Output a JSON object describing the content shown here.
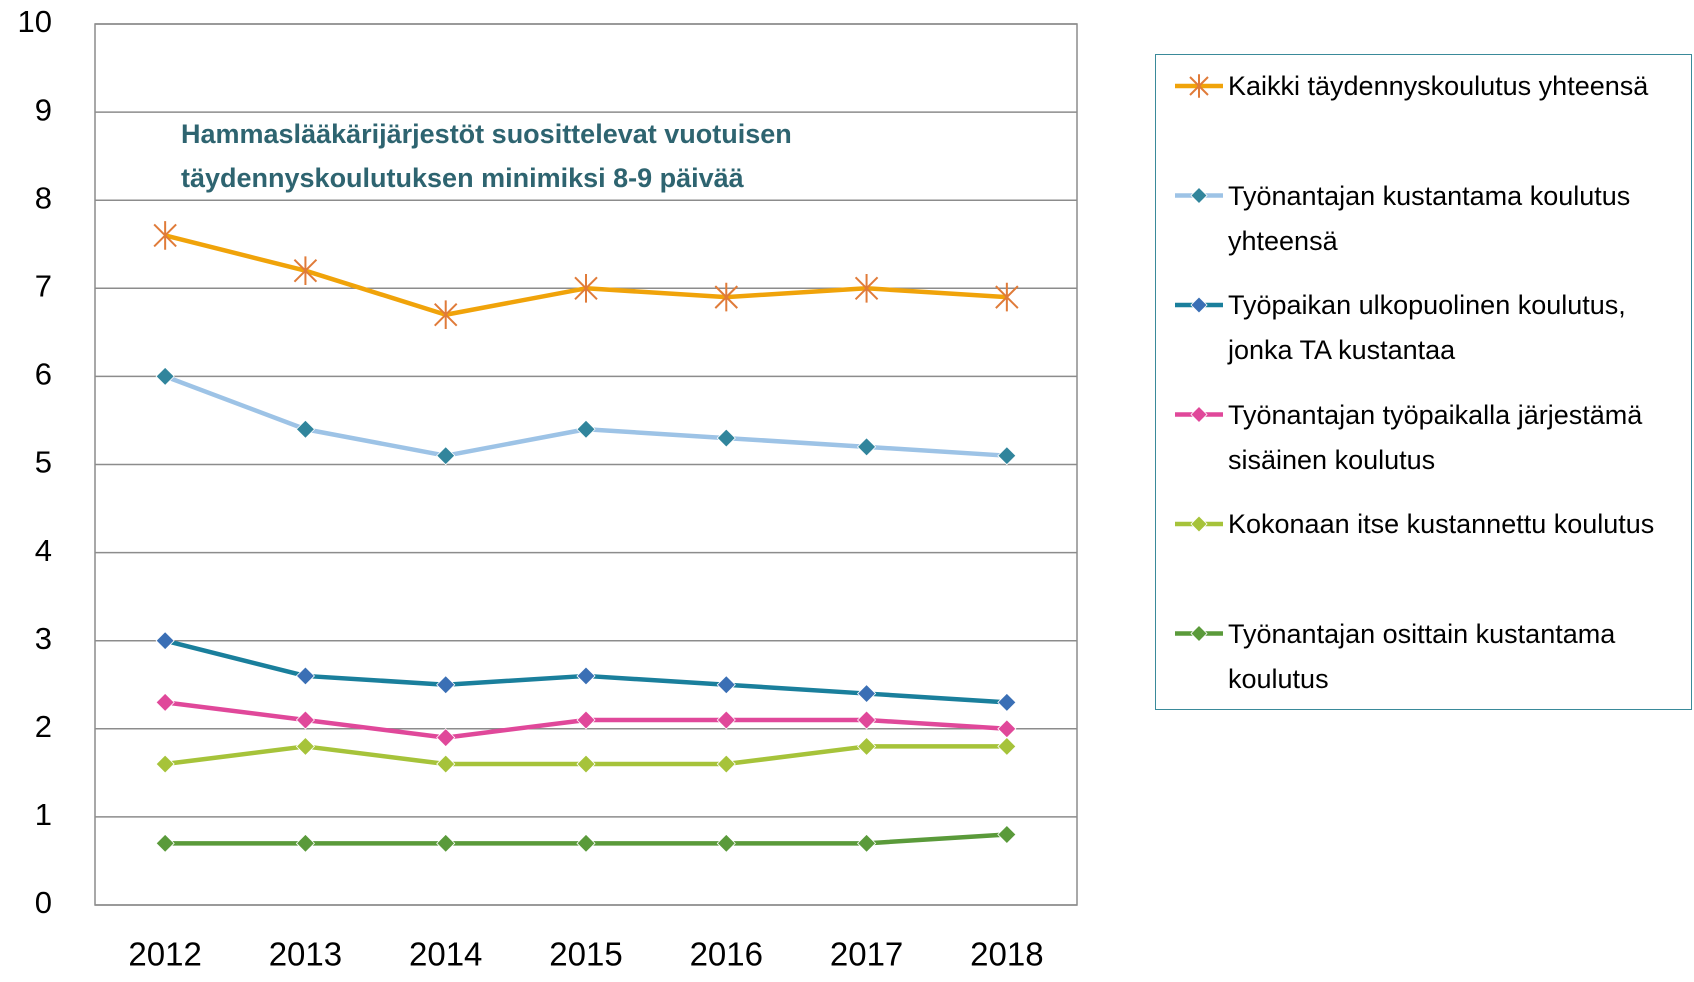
{
  "chart_data": {
    "type": "line",
    "annotation": "Hammaslääkärijärjestöt suosittelevat vuotuisen täydennyskoulutuksen minimiksi 8-9 päivää",
    "categories": [
      "2012",
      "2013",
      "2014",
      "2015",
      "2016",
      "2017",
      "2018"
    ],
    "series": [
      {
        "name": "Kaikki täydennyskoulutus yhteensä",
        "color": "#f0a30a",
        "marker": "asterisk",
        "marker_color": "#e07b39",
        "values": [
          7.6,
          7.2,
          6.7,
          7.0,
          6.9,
          7.0,
          6.9
        ]
      },
      {
        "name": "Työnantajan kustantama koulutus yhteensä",
        "color": "#9dc3e6",
        "marker": "diamond",
        "marker_color": "#31859c",
        "values": [
          6.0,
          5.4,
          5.1,
          5.4,
          5.3,
          5.2,
          5.1
        ]
      },
      {
        "name": "Työpaikan ulkopuolinen koulutus, jonka TA kustantaa",
        "color": "#1a7f9c",
        "marker": "diamond",
        "marker_color": "#3a6fb5",
        "values": [
          3.0,
          2.6,
          2.5,
          2.6,
          2.5,
          2.4,
          2.3
        ]
      },
      {
        "name": "Työnantajan työpaikalla järjestämä sisäinen koulutus",
        "color": "#e0489a",
        "marker": "diamond",
        "marker_color": "#e0489a",
        "values": [
          2.3,
          2.1,
          1.9,
          2.1,
          2.1,
          2.1,
          2.0
        ]
      },
      {
        "name": "Kokonaan itse kustannettu koulutus",
        "color": "#a6c33a",
        "marker": "diamond",
        "marker_color": "#a6c33a",
        "values": [
          1.6,
          1.8,
          1.6,
          1.6,
          1.6,
          1.8,
          1.8
        ]
      },
      {
        "name": "Työnantajan osittain kustantama koulutus",
        "color": "#5a9a3a",
        "marker": "diamond",
        "marker_color": "#5a9a3a",
        "values": [
          0.7,
          0.7,
          0.7,
          0.7,
          0.7,
          0.7,
          0.8
        ]
      }
    ],
    "ylim": [
      0,
      10
    ],
    "yticks": [
      0,
      1,
      2,
      3,
      4,
      5,
      6,
      7,
      8,
      9,
      10
    ],
    "grid": true,
    "legend": "right"
  }
}
